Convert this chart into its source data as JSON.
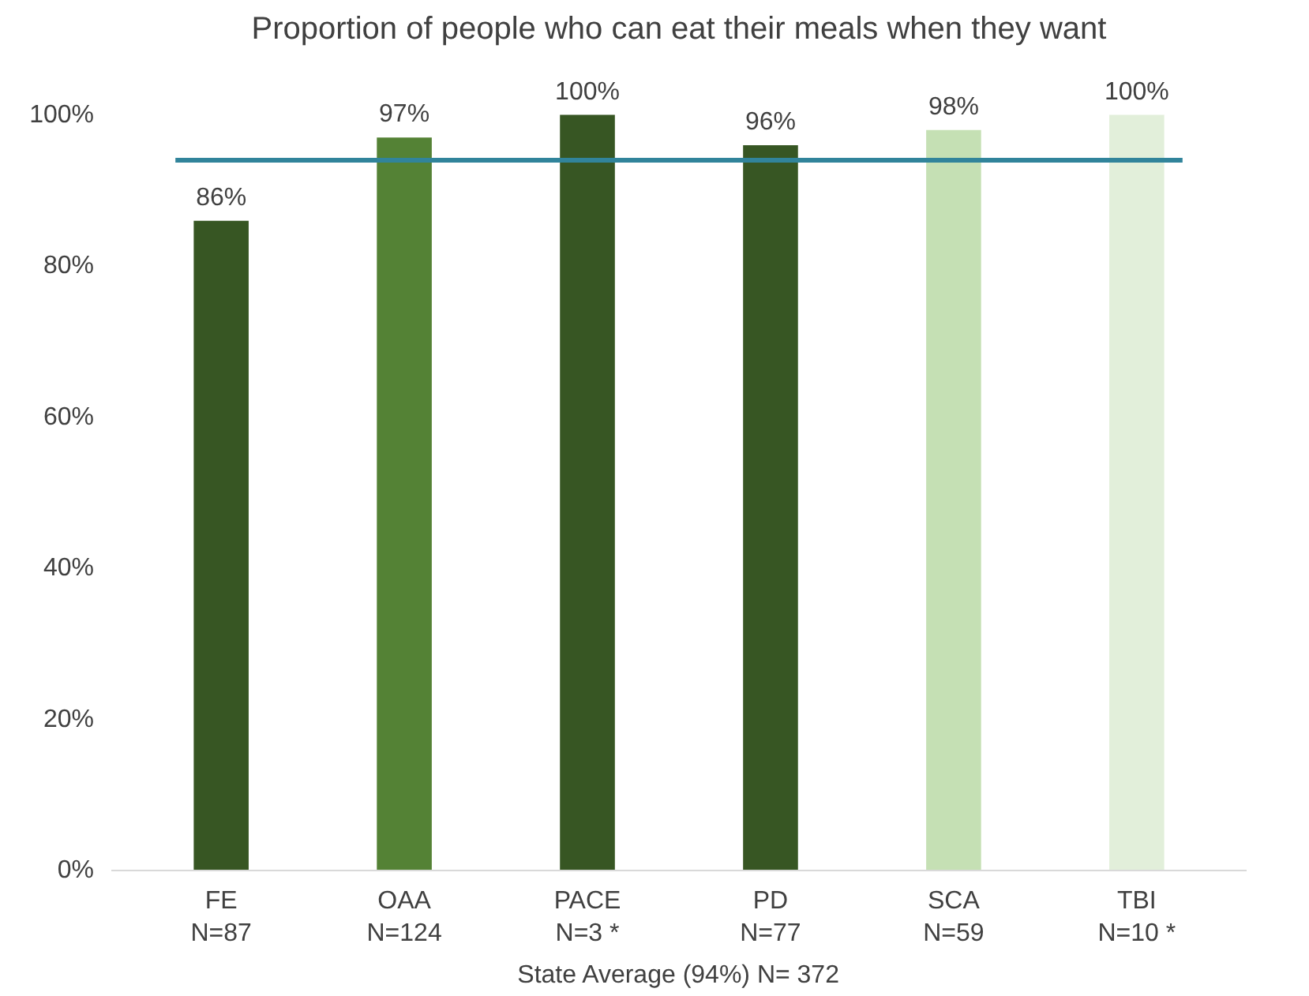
{
  "chart_data": {
    "type": "bar",
    "title": "Proportion of people who can eat their meals when they want",
    "categories": [
      "FE\nN=87",
      "OAA\nN=124",
      "PACE\nN=3 *",
      "PD\nN=77",
      "SCA\nN=59",
      "TBI\nN=10 *"
    ],
    "values": [
      86,
      97,
      100,
      96,
      98,
      100
    ],
    "colors": [
      "#375623",
      "#548235",
      "#375623",
      "#375623",
      "#c5e0b4",
      "#e2efda"
    ],
    "value_labels": [
      "86%",
      "97%",
      "100%",
      "96%",
      "98%",
      "100%"
    ],
    "ylim": [
      0,
      100
    ],
    "yticks": [
      {
        "value": 0,
        "label": "0%"
      },
      {
        "value": 20,
        "label": "20%"
      },
      {
        "value": 40,
        "label": "40%"
      },
      {
        "value": 60,
        "label": "60%"
      },
      {
        "value": 80,
        "label": "80%"
      },
      {
        "value": 100,
        "label": "100%"
      }
    ],
    "ref_lines": [
      {
        "axis": "y",
        "value": 94,
        "color": "#31849b"
      }
    ],
    "annotations": [
      "State Average (94%) N= 372"
    ],
    "grid": false
  }
}
